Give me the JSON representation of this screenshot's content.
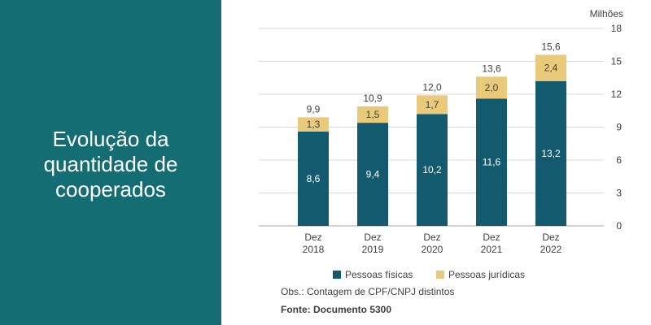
{
  "panel": {
    "title_lines": [
      "Evolução da",
      "quantidade de",
      "cooperados"
    ]
  },
  "notes": {
    "obs": "Obs.: Contagem de CPF/CNPJ distintos",
    "fonte": "Fonte: Documento 5300"
  },
  "colors": {
    "panel_bg": "#146d73",
    "pf": "#145a6e",
    "pj": "#e9c97a"
  },
  "chart_data": {
    "type": "bar",
    "stacked": true,
    "unit_label": "Milhões",
    "categories": [
      [
        "Dez",
        "2018"
      ],
      [
        "Dez",
        "2019"
      ],
      [
        "Dez",
        "2020"
      ],
      [
        "Dez",
        "2021"
      ],
      [
        "Dez",
        "2022"
      ]
    ],
    "series": [
      {
        "name": "Pessoas físicas",
        "values": [
          8.6,
          9.4,
          10.2,
          11.6,
          13.2
        ],
        "labels": [
          "8,6",
          "9,4",
          "10,2",
          "11,6",
          "13,2"
        ]
      },
      {
        "name": "Pessoas jurídicas",
        "values": [
          1.3,
          1.5,
          1.7,
          2.0,
          2.4
        ],
        "labels": [
          "1,3",
          "1,5",
          "1,7",
          "2,0",
          "2,4"
        ]
      }
    ],
    "totals": [
      "9,9",
      "10,9",
      "12,0",
      "13,6",
      "15,6"
    ],
    "ylim": [
      0,
      18
    ],
    "yticks": [
      0,
      3,
      6,
      9,
      12,
      15,
      18
    ],
    "grid": true,
    "legend_position": "bottom"
  }
}
